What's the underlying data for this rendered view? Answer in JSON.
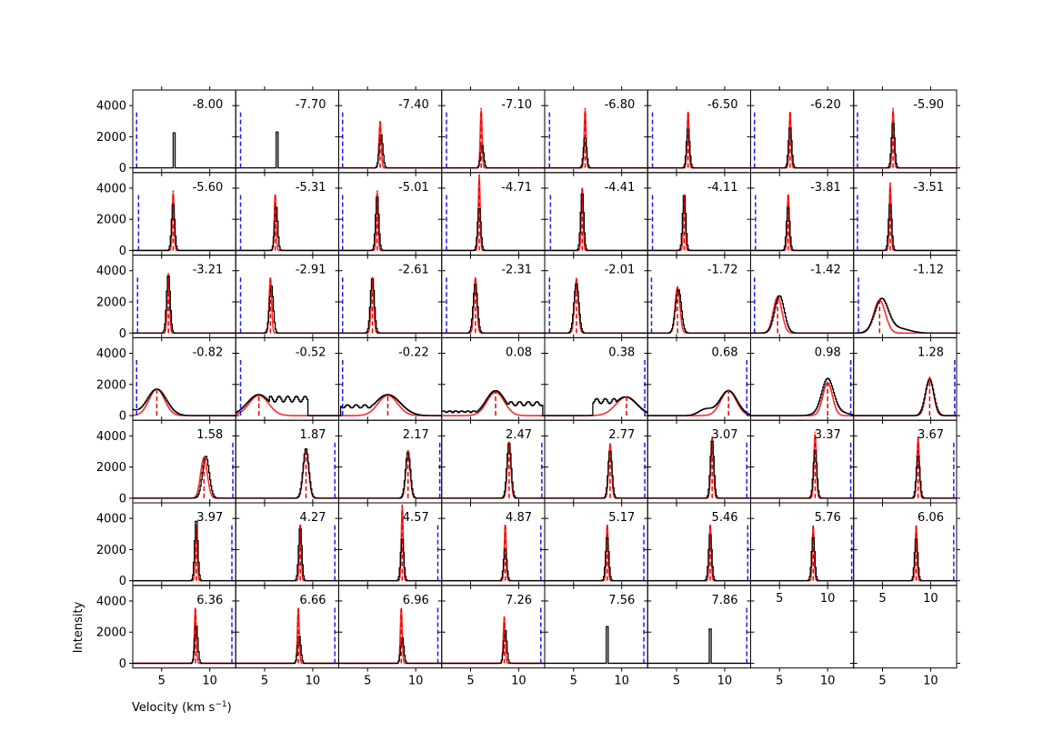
{
  "figure": {
    "xlabel": "Velocity (km s",
    "xlabel_sup": "−1",
    "xlabel_close": ")",
    "ylabel": "Intensity",
    "colors": {
      "model": "#ff2a2a",
      "data": "#000000",
      "center_marker": "#e60000",
      "offset_marker": "#1a1aff"
    }
  },
  "chart_data": {
    "type": "line",
    "layout": "small multiples, 7 rows x 8 columns, shared axes",
    "xlim": [
      2.0,
      12.7
    ],
    "ylim": [
      -300,
      5000
    ],
    "xticks": [
      5,
      10
    ],
    "yticks": [
      0,
      2000,
      4000
    ],
    "series_styles": {
      "data": "black step histogram",
      "model": "red solid gaussian",
      "center": "red dashed vertical line",
      "offset": "blue dashed vertical line"
    },
    "panels": [
      {
        "label": "-8.00",
        "data": {
          "c": 6.3,
          "a": 2250,
          "w": 0.28,
          "shape": "box"
        },
        "model": null,
        "center": null,
        "offset": 2.4
      },
      {
        "label": "-7.70",
        "data": {
          "c": 6.3,
          "a": 2300,
          "w": 0.28,
          "shape": "box"
        },
        "model": null,
        "center": null,
        "offset": 2.5
      },
      {
        "label": "-7.40",
        "data": {
          "c": 6.4,
          "a": 2200,
          "w": 0.18
        },
        "model": {
          "c": 6.3,
          "a": 2900,
          "s": 0.12
        },
        "center": 6.3,
        "offset": 2.4
      },
      {
        "label": "-7.10",
        "data": {
          "c": 6.2,
          "a": 1500,
          "w": 0.16
        },
        "model": {
          "c": 6.1,
          "a": 3700,
          "s": 0.1
        },
        "center": 6.1,
        "offset": 2.5
      },
      {
        "label": "-6.80",
        "data": {
          "c": 6.2,
          "a": 2000,
          "w": 0.16
        },
        "model": {
          "c": 6.2,
          "a": 3700,
          "s": 0.1
        },
        "center": 6.2,
        "offset": 2.5
      },
      {
        "label": "-6.50",
        "data": {
          "c": 6.2,
          "a": 2600,
          "w": 0.16
        },
        "model": {
          "c": 6.2,
          "a": 3600,
          "s": 0.1
        },
        "center": 6.2,
        "offset": 2.5
      },
      {
        "label": "-6.20",
        "data": {
          "c": 6.1,
          "a": 2700,
          "w": 0.16
        },
        "model": {
          "c": 6.1,
          "a": 3600,
          "s": 0.1
        },
        "center": 6.1,
        "offset": 2.4
      },
      {
        "label": "-5.90",
        "data": {
          "c": 6.1,
          "a": 3000,
          "w": 0.16
        },
        "model": {
          "c": 6.1,
          "a": 3700,
          "s": 0.1
        },
        "center": 6.1,
        "offset": 2.4
      },
      {
        "label": "-5.60",
        "data": {
          "c": 6.2,
          "a": 3100,
          "w": 0.16
        },
        "model": {
          "c": 6.2,
          "a": 3700,
          "s": 0.1
        },
        "center": 6.2,
        "offset": 2.6
      },
      {
        "label": "-5.31",
        "data": {
          "c": 6.2,
          "a": 2900,
          "w": 0.16
        },
        "model": {
          "c": 6.1,
          "a": 3600,
          "s": 0.1
        },
        "center": 6.1,
        "offset": 2.5
      },
      {
        "label": "-5.01",
        "data": {
          "c": 6.0,
          "a": 3600,
          "w": 0.16
        },
        "model": {
          "c": 6.0,
          "a": 3700,
          "s": 0.1
        },
        "center": 6.0,
        "offset": 2.4
      },
      {
        "label": "-4.71",
        "data": {
          "c": 5.9,
          "a": 2800,
          "w": 0.16
        },
        "model": {
          "c": 5.9,
          "a": 4700,
          "s": 0.1
        },
        "center": 5.9,
        "offset": 2.5
      },
      {
        "label": "-4.41",
        "data": {
          "c": 5.9,
          "a": 3800,
          "w": 0.16
        },
        "model": {
          "c": 5.9,
          "a": 4000,
          "s": 0.1
        },
        "center": 5.9,
        "offset": 2.6
      },
      {
        "label": "-4.11",
        "data": {
          "c": 5.8,
          "a": 3700,
          "w": 0.16
        },
        "model": {
          "c": 5.8,
          "a": 3600,
          "s": 0.1
        },
        "center": 5.8,
        "offset": 2.5
      },
      {
        "label": "-3.81",
        "data": {
          "c": 5.9,
          "a": 2900,
          "w": 0.16
        },
        "model": {
          "c": 5.9,
          "a": 3600,
          "s": 0.1
        },
        "center": 5.9,
        "offset": 2.5
      },
      {
        "label": "-3.51",
        "data": {
          "c": 5.8,
          "a": 3100,
          "w": 0.16
        },
        "model": {
          "c": 5.8,
          "a": 4200,
          "s": 0.1
        },
        "center": 5.8,
        "offset": 2.4
      },
      {
        "label": "-3.21",
        "data": {
          "c": 5.7,
          "a": 3800,
          "w": 0.18
        },
        "model": {
          "c": 5.7,
          "a": 3700,
          "s": 0.12
        },
        "center": 5.7,
        "offset": 2.5
      },
      {
        "label": "-2.91",
        "data": {
          "c": 5.7,
          "a": 3100,
          "w": 0.2
        },
        "model": {
          "c": 5.6,
          "a": 3500,
          "s": 0.13
        },
        "center": 5.6,
        "offset": 2.5
      },
      {
        "label": "-2.61",
        "data": {
          "c": 5.5,
          "a": 3600,
          "w": 0.2
        },
        "model": {
          "c": 5.5,
          "a": 3500,
          "s": 0.14
        },
        "center": 5.5,
        "offset": 2.4
      },
      {
        "label": "-2.31",
        "data": {
          "c": 5.5,
          "a": 3200,
          "w": 0.22
        },
        "model": {
          "c": 5.5,
          "a": 3500,
          "s": 0.16
        },
        "center": 5.5,
        "offset": 2.5
      },
      {
        "label": "-2.01",
        "data": {
          "c": 5.3,
          "a": 3200,
          "w": 0.25
        },
        "model": {
          "c": 5.3,
          "a": 3400,
          "s": 0.2
        },
        "center": 5.3,
        "offset": 2.5
      },
      {
        "label": "-1.72",
        "data": {
          "c": 5.2,
          "a": 2800,
          "w": 0.3
        },
        "model": {
          "c": 5.1,
          "a": 2900,
          "s": 0.25
        },
        "center": 5.1,
        "offset": 2.4
      },
      {
        "label": "-1.42",
        "data": {
          "c": 5.0,
          "a": 2400,
          "w": 0.5
        },
        "model": {
          "c": 4.8,
          "a": 2300,
          "s": 0.45
        },
        "center": 4.8,
        "offset": 2.4
      },
      {
        "label": "-1.12",
        "data": {
          "c": 4.9,
          "a": 2100,
          "w": 0.7,
          "tail": 4.5
        },
        "model": {
          "c": 4.7,
          "a": 2100,
          "s": 0.6
        },
        "center": 4.7,
        "offset": 2.5
      },
      {
        "label": "-0.82",
        "data": {
          "c": 4.5,
          "a": 1700,
          "w": 1.0,
          "shoulder": 1.5
        },
        "model": {
          "c": 4.5,
          "a": 1700,
          "s": 0.8
        },
        "center": 4.5,
        "offset": 2.4
      },
      {
        "label": "-0.52",
        "data": {
          "c": 4.4,
          "a": 1350,
          "w": 1.2,
          "plateau": [
            5.5,
            9.5,
            1250
          ]
        },
        "model": {
          "c": 4.4,
          "a": 1300,
          "s": 1.0
        },
        "center": 4.4,
        "offset": 2.5
      },
      {
        "label": "-0.22",
        "data": {
          "c": 7.1,
          "a": 1350,
          "w": 1.3,
          "plateau": [
            2.2,
            6.5,
            700
          ]
        },
        "model": {
          "c": 7.1,
          "a": 1300,
          "s": 1.0
        },
        "center": 7.1,
        "offset": 2.4
      },
      {
        "label": "0.08",
        "data": {
          "c": 7.6,
          "a": 1600,
          "w": 1.0,
          "plateau": [
            8.5,
            12.5,
            900
          ],
          "base": [
            2.0,
            7.0,
            300
          ]
        },
        "model": {
          "c": 7.6,
          "a": 1500,
          "s": 0.9
        },
        "center": 7.6,
        "offset": null
      },
      {
        "label": "0.38",
        "data": {
          "c": 10.4,
          "a": 1200,
          "w": 1.2,
          "plateau": [
            7.0,
            10.0,
            1100
          ]
        },
        "model": {
          "c": 10.5,
          "a": 1200,
          "s": 1.1
        },
        "center": 10.5,
        "offset": 12.4
      },
      {
        "label": "0.68",
        "data": {
          "c": 10.4,
          "a": 1600,
          "w": 0.9,
          "shoulder": 8.0
        },
        "model": {
          "c": 10.4,
          "a": 1600,
          "s": 0.8
        },
        "center": 10.4,
        "offset": 12.3
      },
      {
        "label": "0.98",
        "data": {
          "c": 10.0,
          "a": 2100,
          "w": 0.6,
          "tail": 8.5
        },
        "model": {
          "c": 10.0,
          "a": 2100,
          "s": 0.5
        },
        "center": 10.0,
        "offset": 12.4
      },
      {
        "label": "1.28",
        "data": {
          "c": 9.9,
          "a": 2300,
          "w": 0.45
        },
        "model": {
          "c": 9.9,
          "a": 2400,
          "s": 0.4
        },
        "center": 9.9,
        "offset": 12.5
      },
      {
        "label": "1.58",
        "data": {
          "c": 9.6,
          "a": 2700,
          "w": 0.35
        },
        "model": {
          "c": 9.4,
          "a": 2600,
          "s": 0.35
        },
        "center": 9.4,
        "offset": 12.4
      },
      {
        "label": "1.87",
        "data": {
          "c": 9.3,
          "a": 3200,
          "w": 0.3
        },
        "model": {
          "c": 9.3,
          "a": 3100,
          "s": 0.28
        },
        "center": 9.3,
        "offset": 12.3
      },
      {
        "label": "2.17",
        "data": {
          "c": 9.2,
          "a": 3000,
          "w": 0.25
        },
        "model": {
          "c": 9.2,
          "a": 3000,
          "s": 0.22
        },
        "center": 9.2,
        "offset": 12.5
      },
      {
        "label": "2.47",
        "data": {
          "c": 9.0,
          "a": 3600,
          "w": 0.22
        },
        "model": {
          "c": 9.0,
          "a": 3600,
          "s": 0.18
        },
        "center": 9.0,
        "offset": 12.4
      },
      {
        "label": "2.77",
        "data": {
          "c": 8.8,
          "a": 3100,
          "w": 0.2
        },
        "model": {
          "c": 8.8,
          "a": 3400,
          "s": 0.16
        },
        "center": 8.8,
        "offset": 12.4
      },
      {
        "label": "3.07",
        "data": {
          "c": 8.7,
          "a": 3800,
          "w": 0.18
        },
        "model": {
          "c": 8.7,
          "a": 3800,
          "s": 0.14
        },
        "center": 8.7,
        "offset": 12.3
      },
      {
        "label": "3.37",
        "data": {
          "c": 8.7,
          "a": 3200,
          "w": 0.18
        },
        "model": {
          "c": 8.7,
          "a": 4100,
          "s": 0.13
        },
        "center": 8.7,
        "offset": 12.4
      },
      {
        "label": "3.67",
        "data": {
          "c": 8.7,
          "a": 2800,
          "w": 0.18
        },
        "model": {
          "c": 8.7,
          "a": 3800,
          "s": 0.13
        },
        "center": 8.7,
        "offset": 12.4
      },
      {
        "label": "3.97",
        "data": {
          "c": 8.6,
          "a": 4000,
          "w": 0.16
        },
        "model": {
          "c": 8.6,
          "a": 3600,
          "s": 0.1
        },
        "center": 8.6,
        "offset": 12.3
      },
      {
        "label": "4.27",
        "data": {
          "c": 8.7,
          "a": 3500,
          "w": 0.16
        },
        "model": {
          "c": 8.7,
          "a": 3600,
          "s": 0.1
        },
        "center": 8.7,
        "offset": 12.3
      },
      {
        "label": "4.57",
        "data": {
          "c": 8.6,
          "a": 2800,
          "w": 0.16
        },
        "model": {
          "c": 8.6,
          "a": 4700,
          "s": 0.1
        },
        "center": 8.6,
        "offset": 12.3
      },
      {
        "label": "4.87",
        "data": {
          "c": 8.6,
          "a": 2100,
          "w": 0.16
        },
        "model": {
          "c": 8.6,
          "a": 3600,
          "s": 0.1
        },
        "center": 8.6,
        "offset": 12.3
      },
      {
        "label": "5.17",
        "data": {
          "c": 8.5,
          "a": 2900,
          "w": 0.16
        },
        "model": {
          "c": 8.5,
          "a": 3600,
          "s": 0.1
        },
        "center": 8.5,
        "offset": 12.3
      },
      {
        "label": "5.46",
        "data": {
          "c": 8.5,
          "a": 3100,
          "w": 0.16
        },
        "model": {
          "c": 8.5,
          "a": 3600,
          "s": 0.1
        },
        "center": 8.5,
        "offset": 12.4
      },
      {
        "label": "5.76",
        "data": {
          "c": 8.5,
          "a": 2900,
          "w": 0.16
        },
        "model": {
          "c": 8.5,
          "a": 3500,
          "s": 0.1
        },
        "center": 8.5,
        "offset": 12.5
      },
      {
        "label": "6.06",
        "data": {
          "c": 8.5,
          "a": 2800,
          "w": 0.16
        },
        "model": {
          "c": 8.5,
          "a": 3500,
          "s": 0.1
        },
        "center": 8.5,
        "offset": 12.4
      },
      {
        "label": "6.36",
        "data": {
          "c": 8.6,
          "a": 2500,
          "w": 0.16
        },
        "model": {
          "c": 8.5,
          "a": 3500,
          "s": 0.1
        },
        "center": 8.5,
        "offset": 12.3
      },
      {
        "label": "6.66",
        "data": {
          "c": 8.6,
          "a": 1800,
          "w": 0.16
        },
        "model": {
          "c": 8.5,
          "a": 3500,
          "s": 0.1
        },
        "center": 8.5,
        "offset": 12.3
      },
      {
        "label": "6.96",
        "data": {
          "c": 8.6,
          "a": 1700,
          "w": 0.16
        },
        "model": {
          "c": 8.5,
          "a": 3500,
          "s": 0.1
        },
        "center": 8.5,
        "offset": 12.3
      },
      {
        "label": "7.26",
        "data": {
          "c": 8.6,
          "a": 2200,
          "w": 0.16
        },
        "model": {
          "c": 8.5,
          "a": 2900,
          "s": 0.1
        },
        "center": 8.5,
        "offset": 12.3
      },
      {
        "label": "7.56",
        "data": {
          "c": 8.5,
          "a": 2350,
          "w": 0.28,
          "shape": "box"
        },
        "model": null,
        "center": null,
        "offset": 12.3
      },
      {
        "label": "7.86",
        "data": {
          "c": 8.5,
          "a": 2200,
          "w": 0.28,
          "shape": "box"
        },
        "model": null,
        "center": null,
        "offset": 12.3
      },
      {
        "label": "",
        "data": null,
        "model": null,
        "center": null,
        "offset": null
      },
      {
        "label": "",
        "data": null,
        "model": null,
        "center": null,
        "offset": null
      }
    ]
  }
}
